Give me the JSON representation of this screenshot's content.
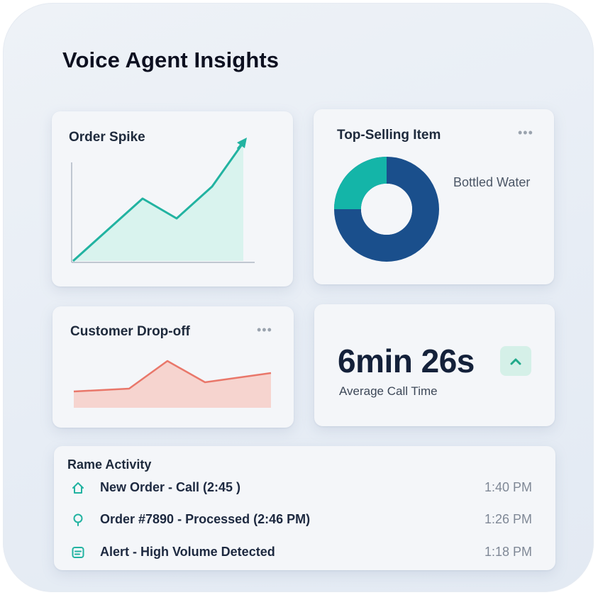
{
  "app": {
    "title": "Voice Agent Insights"
  },
  "colors": {
    "teal": "#22b3a1",
    "teal_fill": "#d9f3ee",
    "coral": "#e9776a",
    "coral_fill": "#f6d4cf",
    "donut_teal": "#14b5a8",
    "donut_navy": "#1a4f8c",
    "trend_green": "#20a98a"
  },
  "order_spike": {
    "title": "Order Spike",
    "icon": "trend-up-arrow-icon"
  },
  "top_selling": {
    "title": "Top-Selling Item",
    "more": "•••",
    "item_label": "Bottled Water"
  },
  "customer_dropoff": {
    "title": "Customer Drop-off",
    "more": "•••"
  },
  "average_call": {
    "value": "6min 26s",
    "label": "Average Call Time",
    "trend_icon": "chevron-up-icon"
  },
  "activity": {
    "title": "Rame Activity",
    "items": [
      {
        "icon": "home-icon",
        "text": "New Order - Call (2:45 )",
        "time": "1:40 PM"
      },
      {
        "icon": "lightbulb-icon",
        "text": "Order #7890 - Processed (2:46 PM)",
        "time": "1:26 PM"
      },
      {
        "icon": "alert-list-icon",
        "text": "Alert - High Volume Detected",
        "time": "1:18 PM"
      }
    ]
  }
}
